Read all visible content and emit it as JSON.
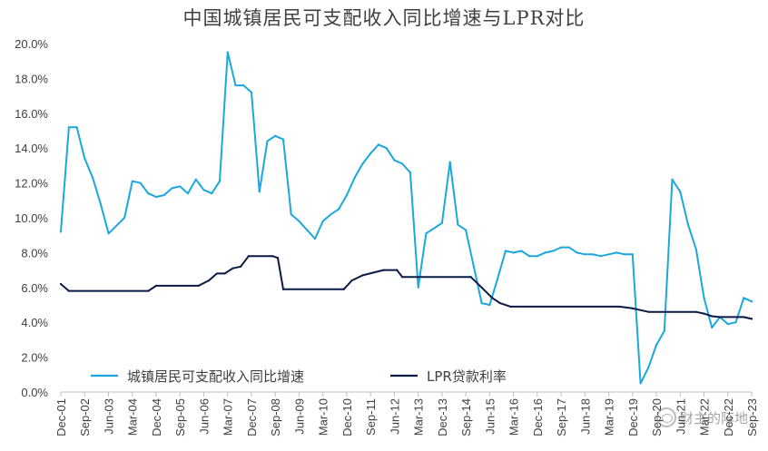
{
  "chart_data": {
    "type": "line",
    "title": "中国城镇居民可支配收入同比增速与LPR对比",
    "ylim": [
      0,
      20
    ],
    "y_ticks": [
      "0.0%",
      "2.0%",
      "4.0%",
      "6.0%",
      "8.0%",
      "10.0%",
      "12.0%",
      "14.0%",
      "16.0%",
      "18.0%",
      "20.0%"
    ],
    "x_ticks": [
      "Dec-01",
      "Sep-02",
      "Jun-03",
      "Mar-04",
      "Dec-04",
      "Sep-05",
      "Jun-06",
      "Mar-07",
      "Dec-07",
      "Sep-08",
      "Jun-09",
      "Mar-10",
      "Dec-10",
      "Sep-11",
      "Jun-12",
      "Mar-13",
      "Dec-13",
      "Sep-14",
      "Jun-15",
      "Mar-16",
      "Dec-16",
      "Sep-17",
      "Jun-18",
      "Mar-19",
      "Dec-19",
      "Sep-20",
      "Jun-21",
      "Mar-22",
      "Dec-22",
      "Sep-23"
    ],
    "legend_position": "bottom-left-inside",
    "colors": {
      "income": "#1BA8DC",
      "lpr": "#0A1A44",
      "axis": "#bfbfbf",
      "text": "#404040"
    },
    "series": [
      {
        "name": "城镇居民可支配收入同比增速",
        "color": "#1BA8DC",
        "x": [
          2001.917,
          2002.17,
          2002.42,
          2002.67,
          2002.92,
          2003.17,
          2003.42,
          2003.92,
          2004.17,
          2004.42,
          2004.67,
          2004.92,
          2005.17,
          2005.42,
          2005.67,
          2005.92,
          2006.17,
          2006.42,
          2006.67,
          2006.92,
          2007.17,
          2007.42,
          2007.67,
          2007.92,
          2008.17,
          2008.42,
          2008.67,
          2008.92,
          2009.17,
          2009.42,
          2009.67,
          2009.92,
          2010.17,
          2010.42,
          2010.67,
          2010.92,
          2011.17,
          2011.42,
          2011.67,
          2011.92,
          2012.17,
          2012.42,
          2012.67,
          2012.92,
          2013.17,
          2013.42,
          2013.92,
          2014.17,
          2014.42,
          2014.67,
          2014.92,
          2015.17,
          2015.42,
          2015.67,
          2015.92,
          2016.17,
          2016.42,
          2016.67,
          2016.92,
          2017.17,
          2017.42,
          2017.67,
          2017.92,
          2018.17,
          2018.42,
          2018.67,
          2018.92,
          2019.17,
          2019.42,
          2019.67,
          2019.92,
          2020.17,
          2020.42,
          2020.67,
          2020.92,
          2021.17,
          2021.42,
          2021.67,
          2021.92,
          2022.17,
          2022.42,
          2022.67,
          2022.92,
          2023.17,
          2023.42,
          2023.67
        ],
        "y": [
          9.2,
          15.2,
          15.2,
          13.4,
          12.3,
          10.8,
          9.1,
          10.0,
          12.1,
          12.0,
          11.4,
          11.2,
          11.3,
          11.7,
          11.8,
          11.4,
          12.2,
          11.6,
          11.4,
          12.1,
          19.5,
          17.6,
          17.6,
          17.2,
          11.5,
          14.4,
          14.7,
          14.5,
          10.2,
          9.8,
          9.3,
          8.8,
          9.8,
          10.2,
          10.5,
          11.3,
          12.3,
          13.1,
          13.7,
          14.2,
          14.0,
          13.3,
          13.1,
          12.6,
          6.0,
          9.1,
          9.7,
          13.2,
          9.6,
          9.3,
          7.2,
          5.1,
          5.0,
          6.5,
          8.1,
          8.0,
          8.1,
          7.8,
          7.8,
          8.0,
          8.1,
          8.3,
          8.3,
          8.0,
          7.9,
          7.9,
          7.8,
          7.9,
          8.0,
          7.9,
          7.9,
          0.5,
          1.4,
          2.7,
          3.5,
          12.2,
          11.5,
          9.6,
          8.2,
          5.4,
          3.7,
          4.3,
          3.9,
          4.0,
          5.4,
          5.2
        ]
      },
      {
        "name": "LPR贷款利率",
        "color": "#0A1A44",
        "x": [
          2001.917,
          2002.17,
          2004.67,
          2004.92,
          2006.25,
          2006.58,
          2006.83,
          2007.08,
          2007.33,
          2007.58,
          2007.83,
          2008.58,
          2008.75,
          2008.92,
          2010.83,
          2011.08,
          2011.42,
          2012.08,
          2012.5,
          2012.67,
          2014.83,
          2015.17,
          2015.5,
          2015.75,
          2016.08,
          2019.5,
          2019.92,
          2020.42,
          2021.92,
          2022.17,
          2022.42,
          2022.67,
          2023.42,
          2023.67
        ],
        "y": [
          6.2,
          5.8,
          5.8,
          6.1,
          6.1,
          6.4,
          6.8,
          6.8,
          7.1,
          7.2,
          7.8,
          7.8,
          7.7,
          5.9,
          5.9,
          6.4,
          6.7,
          7.0,
          7.0,
          6.6,
          6.6,
          6.0,
          5.4,
          5.1,
          4.9,
          4.9,
          4.8,
          4.6,
          4.6,
          4.5,
          4.35,
          4.3,
          4.3,
          4.2
        ]
      }
    ]
  },
  "watermark": {
    "text": "财主的阵地"
  }
}
